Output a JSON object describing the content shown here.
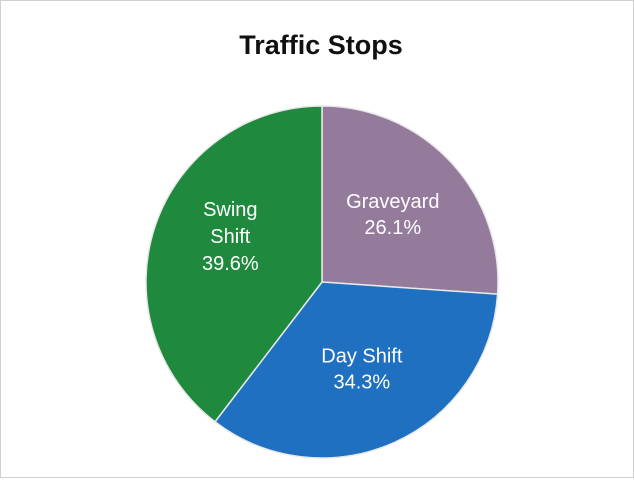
{
  "chart_data": {
    "type": "pie",
    "title": "Traffic Stops",
    "categories": [
      "Graveyard",
      "Day Shift",
      "Swing Shift"
    ],
    "values": [
      26.1,
      34.3,
      39.6
    ],
    "value_labels": [
      "26.1%",
      "34.3%",
      "39.6%"
    ],
    "colors": [
      "#957b9b",
      "#1f70c1",
      "#1f8a3e"
    ]
  }
}
